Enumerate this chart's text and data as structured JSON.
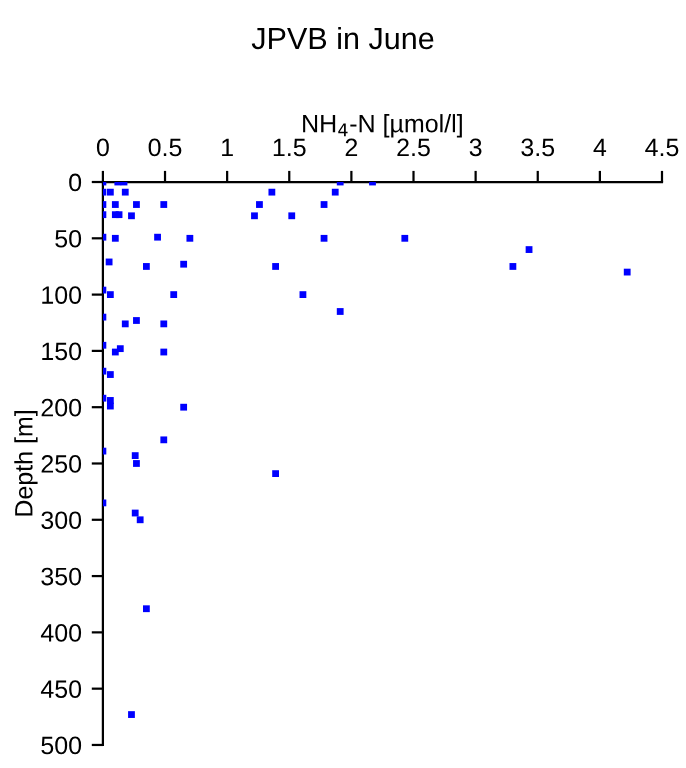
{
  "chart_data": {
    "type": "scatter",
    "title": "JPVB in June",
    "xlabel": "NH$_{4}$-N [µmol/l]",
    "ylabel": "Depth [m]",
    "x": [
      0,
      0.12,
      0.17,
      1.91,
      2.17,
      0,
      0.06,
      0.18,
      1.36,
      1.87,
      0,
      0.1,
      0.27,
      0.49,
      1.26,
      1.78,
      0,
      0.1,
      0.13,
      0.23,
      1.22,
      1.52,
      0,
      0.1,
      0.44,
      0.7,
      1.78,
      2.43,
      3.43,
      3.3,
      4.22,
      0.05,
      0.35,
      0.65,
      1.39,
      0,
      0.06,
      0.57,
      1.61,
      1.91,
      0,
      0.18,
      0.27,
      0.49,
      0,
      0.1,
      0.14,
      0.49,
      0,
      0.06,
      0,
      0.06,
      0.06,
      0.65,
      0,
      0.49,
      0.26,
      0.27,
      1.39,
      0,
      0.26,
      0.3,
      0.35,
      0.23
    ],
    "series": [
      {
        "color": "#0000ff",
        "values": [
          0,
          0,
          0,
          0,
          0,
          9,
          9,
          9,
          9,
          9,
          20,
          20,
          20,
          20,
          20,
          20,
          29,
          29,
          29,
          30,
          30,
          30,
          49,
          50,
          49,
          50,
          50,
          50,
          60,
          75,
          80,
          71,
          75,
          73,
          75,
          96,
          100,
          100,
          100,
          115,
          120,
          126,
          123,
          126,
          145,
          151,
          148,
          151,
          168,
          171,
          192,
          194,
          199,
          200,
          239,
          229,
          243,
          250,
          259,
          285,
          294,
          300,
          379,
          473
        ]
      }
    ],
    "marker": "square",
    "xlim": [
      0,
      4.5
    ],
    "ylim": [
      500,
      0
    ],
    "xticks": [
      0,
      0.5,
      1,
      1.5,
      2,
      2.5,
      3,
      3.5,
      4,
      4.5
    ],
    "yticks": [
      0,
      50,
      100,
      150,
      200,
      250,
      300,
      350,
      400,
      450,
      500
    ],
    "grid": false
  }
}
